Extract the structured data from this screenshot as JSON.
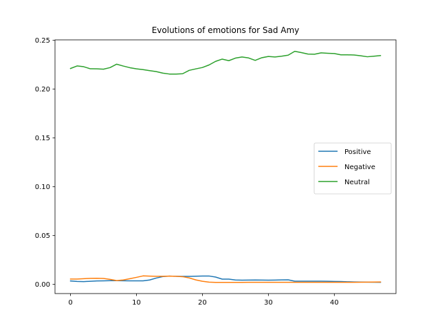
{
  "chart_data": {
    "type": "line",
    "title": "Evolutions of emotions for Sad Amy",
    "xlabel": "",
    "ylabel": "",
    "xlim": [
      -2.35,
      49.35
    ],
    "ylim": [
      -0.0094,
      0.2505
    ],
    "xticks": [
      0,
      10,
      20,
      30,
      40
    ],
    "xtick_labels": [
      "0",
      "10",
      "20",
      "30",
      "40"
    ],
    "yticks": [
      0.0,
      0.05,
      0.1,
      0.15,
      0.2,
      0.25
    ],
    "ytick_labels": [
      "0.00",
      "0.05",
      "0.10",
      "0.15",
      "0.20",
      "0.25"
    ],
    "grid": false,
    "legend_position": "center-right",
    "x": [
      0,
      1,
      2,
      3,
      4,
      5,
      6,
      7,
      8,
      9,
      10,
      11,
      12,
      13,
      14,
      15,
      16,
      17,
      18,
      19,
      20,
      21,
      22,
      23,
      24,
      25,
      26,
      27,
      28,
      29,
      30,
      31,
      32,
      33,
      34,
      35,
      36,
      37,
      38,
      39,
      40,
      41,
      42,
      43,
      44,
      45,
      46,
      47
    ],
    "series": [
      {
        "name": "Positive",
        "color": "#1f77b4",
        "values": [
          0.0035,
          0.003,
          0.0028,
          0.0032,
          0.0035,
          0.0036,
          0.0038,
          0.0038,
          0.0037,
          0.0036,
          0.0036,
          0.0036,
          0.0045,
          0.0065,
          0.008,
          0.0085,
          0.0083,
          0.0082,
          0.0082,
          0.0084,
          0.0086,
          0.0086,
          0.0075,
          0.0054,
          0.0054,
          0.0045,
          0.0043,
          0.0044,
          0.0045,
          0.0044,
          0.0043,
          0.0044,
          0.0046,
          0.0047,
          0.0033,
          0.0033,
          0.0033,
          0.0033,
          0.0033,
          0.0032,
          0.003,
          0.0029,
          0.0027,
          0.0025,
          0.0024,
          0.0023,
          0.0022,
          0.0021
        ]
      },
      {
        "name": "Negative",
        "color": "#ff7f0e",
        "values": [
          0.0055,
          0.0055,
          0.0058,
          0.0062,
          0.0063,
          0.0061,
          0.0051,
          0.0039,
          0.0045,
          0.0058,
          0.0072,
          0.0087,
          0.0085,
          0.0083,
          0.0083,
          0.0085,
          0.0083,
          0.0079,
          0.0066,
          0.0046,
          0.0032,
          0.0023,
          0.002,
          0.002,
          0.002,
          0.002,
          0.002,
          0.0021,
          0.0021,
          0.0021,
          0.0021,
          0.0021,
          0.0021,
          0.0021,
          0.0021,
          0.0021,
          0.0021,
          0.0021,
          0.0021,
          0.0021,
          0.0021,
          0.0021,
          0.0021,
          0.0021,
          0.0022,
          0.0023,
          0.0024,
          0.0025
        ]
      },
      {
        "name": "Neutral",
        "color": "#2ca02c",
        "values": [
          0.2212,
          0.2238,
          0.223,
          0.2209,
          0.2208,
          0.2205,
          0.2221,
          0.2256,
          0.2237,
          0.222,
          0.2208,
          0.22,
          0.219,
          0.218,
          0.2164,
          0.2155,
          0.2155,
          0.2158,
          0.2193,
          0.2208,
          0.2222,
          0.2248,
          0.2285,
          0.2308,
          0.2292,
          0.2318,
          0.233,
          0.232,
          0.2295,
          0.2322,
          0.2335,
          0.233,
          0.2338,
          0.2348,
          0.2388,
          0.2375,
          0.236,
          0.2358,
          0.2372,
          0.2368,
          0.2365,
          0.2352,
          0.2352,
          0.235,
          0.2342,
          0.2332,
          0.2338,
          0.2344
        ]
      }
    ]
  }
}
